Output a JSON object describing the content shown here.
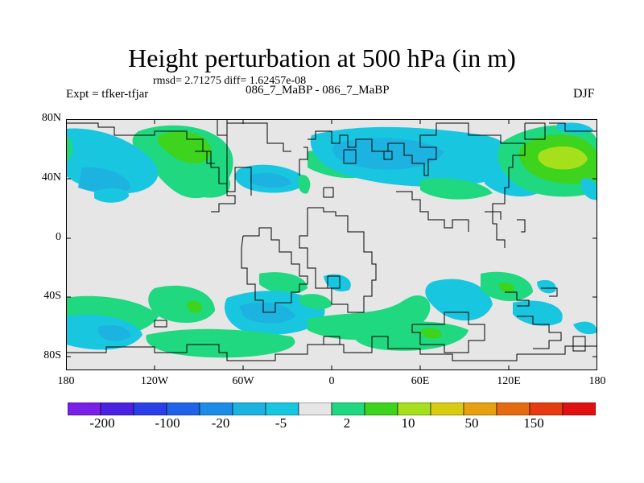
{
  "header": {
    "title": "Height perturbation at 500 hPa (in m)",
    "stats": "rmsd= 2.71275 diff= 1.62457e-08",
    "experiment": "Expt = tfker-tfjar",
    "case_id": "086_7_MaBP - 086_7_MaBP",
    "season": "DJF"
  },
  "map": {
    "lat_labels": [
      "80N",
      "40N",
      "0",
      "40S",
      "80S"
    ],
    "lon_labels": [
      "180",
      "120W",
      "60W",
      "0",
      "60E",
      "120E",
      "180"
    ],
    "background_color": "#e6e6e6",
    "land_outline_color": "#000000"
  },
  "colorbar": {
    "colors": [
      "#7a1fe6",
      "#4a22e0",
      "#2a3fe8",
      "#1f63e8",
      "#1c8de6",
      "#1cb3e0",
      "#19c6e0",
      "#e6e6e6",
      "#1fd880",
      "#3ed31c",
      "#a6e01c",
      "#d8cc10",
      "#e6a010",
      "#e66a10",
      "#e63a10",
      "#e01010"
    ],
    "labels": [
      "-200",
      "-100",
      "-20",
      "-5",
      "2",
      "10",
      "50",
      "150"
    ]
  }
}
